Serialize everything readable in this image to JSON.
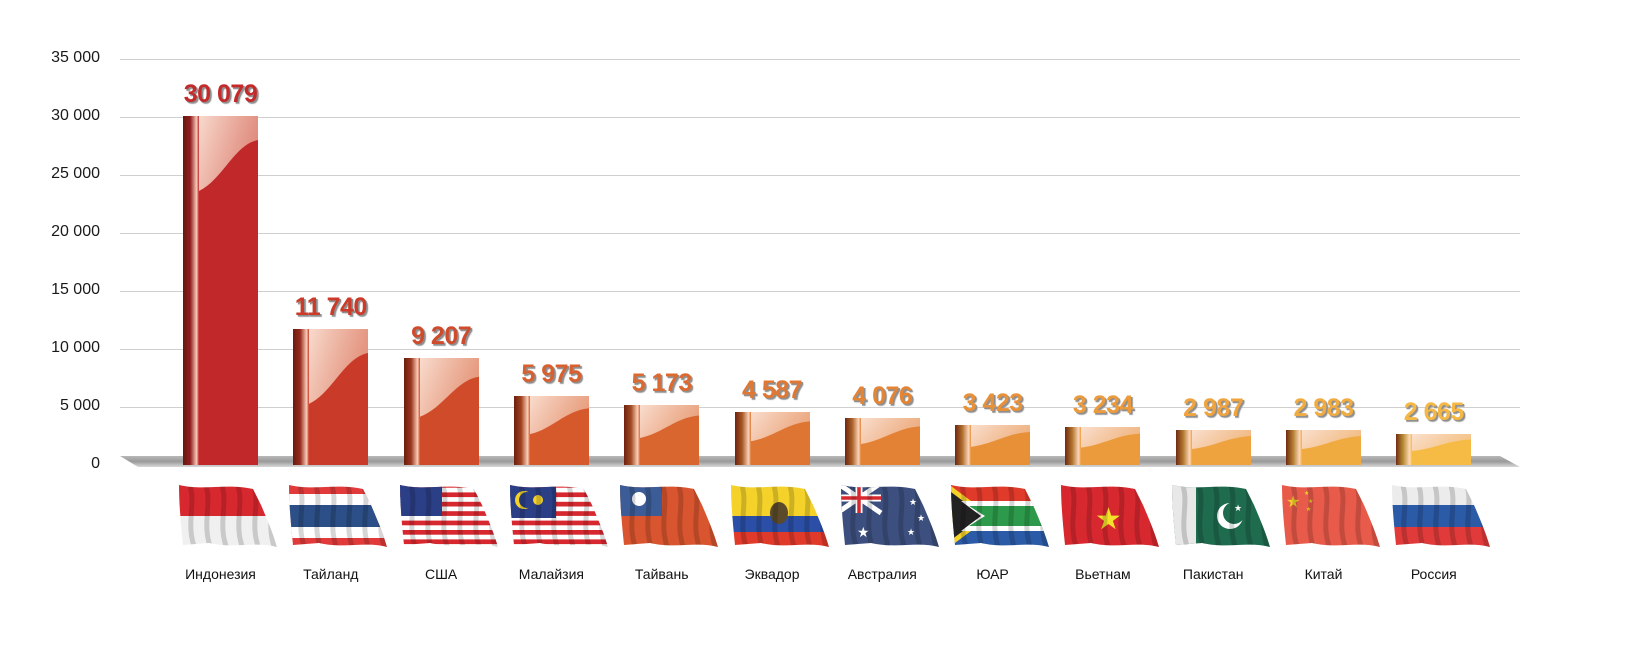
{
  "chart_data": {
    "type": "bar",
    "title": "",
    "xlabel": "",
    "ylabel": "",
    "ylim": [
      0,
      35000
    ],
    "yticks": [
      0,
      5000,
      10000,
      15000,
      20000,
      25000,
      30000,
      35000
    ],
    "ytick_labels": [
      "0",
      "5 000",
      "10 000",
      "15 000",
      "20 000",
      "25 000",
      "30 000",
      "35 000"
    ],
    "grid": true,
    "legend": null,
    "categories": [
      "Индонезия",
      "Тайланд",
      "США",
      "Малайзия",
      "Тайвань",
      "Эквадор",
      "Австралия",
      "ЮАР",
      "Вьетнам",
      "Пакистан",
      "Китай",
      "Россия"
    ],
    "values": [
      30079,
      11740,
      9207,
      5975,
      5173,
      4587,
      4076,
      3423,
      3234,
      2987,
      2983,
      2665
    ],
    "value_labels": [
      "30 079",
      "11 740",
      "9 207",
      "5 975",
      "5 173",
      "4 587",
      "4 076",
      "3 423",
      "3 234",
      "2 987",
      "2 983",
      "2 665"
    ],
    "bar_colors": [
      "#c0282a",
      "#c93a28",
      "#cf4b2a",
      "#d6592c",
      "#da662f",
      "#df7532",
      "#e38234",
      "#e89038",
      "#eb9b3b",
      "#eea33e",
      "#f0ab40",
      "#f6bb45"
    ],
    "label_colors": [
      "#c42a2a",
      "#cc3a2a",
      "#d04a2c",
      "#d8602f",
      "#dc6a30",
      "#e07833",
      "#e48536",
      "#e99139",
      "#ec9b3c",
      "#efa43f",
      "#f1ac41",
      "#f5b845"
    ],
    "flags": [
      "indonesia-flag-icon",
      "thailand-flag-icon",
      "usa-flag-icon",
      "malaysia-flag-icon",
      "taiwan-flag-icon",
      "ecuador-flag-icon",
      "australia-flag-icon",
      "south-africa-flag-icon",
      "vietnam-flag-icon",
      "pakistan-flag-icon",
      "china-flag-icon",
      "russia-flag-icon"
    ]
  }
}
